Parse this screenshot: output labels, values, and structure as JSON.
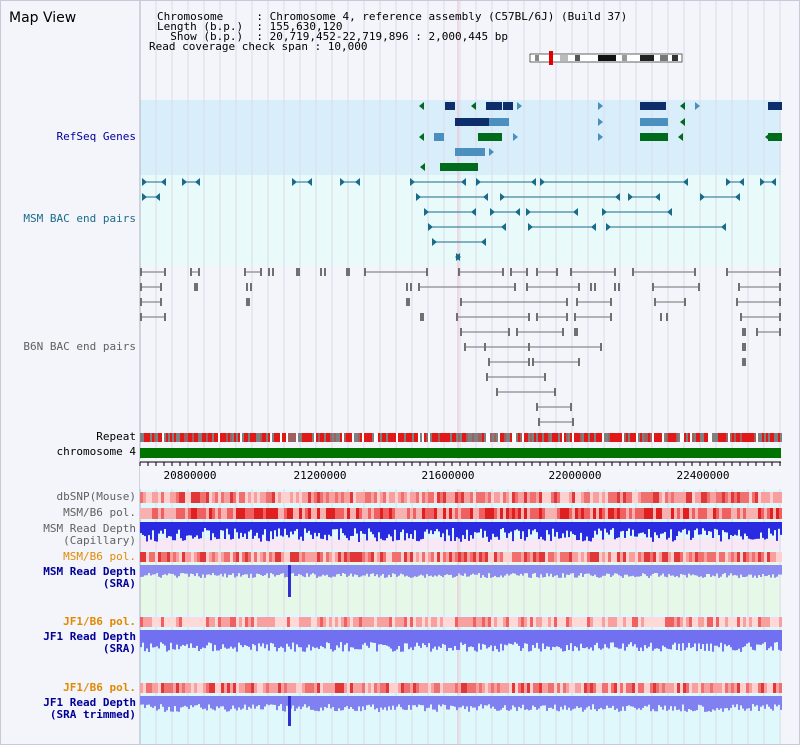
{
  "page": {
    "title": "Map View"
  },
  "header": {
    "lines": [
      {
        "key": "Chromosome     ",
        "value": "Chromosome 4, reference assembly (C57BL/6J) (Build 37)"
      },
      {
        "key": "Length (b.p.)  ",
        "value": "155,630,120"
      },
      {
        "key": "  Show (b.p.)  ",
        "value": "20,719,452-22,719,896 : 2,000,445 bp"
      }
    ],
    "coverage_line": "Read coverage check span : 10,000"
  },
  "tracks": {
    "refseq": "RefSeq Genes",
    "msm_bac": "MSM BAC end pairs",
    "b6n_bac": "B6N BAC end pairs",
    "repeat": "Repeat",
    "chromosome": "chromosome 4",
    "dbsnp": "dbSNP(Mouse)",
    "msm_b6_pol_1": "MSM/B6 pol.",
    "msm_read_depth_cap_1": "MSM Read Depth",
    "msm_read_depth_cap_2": "(Capillary)",
    "msm_b6_pol_2": "MSM/B6 pol.",
    "msm_read_depth_sra_1": "MSM Read Depth",
    "msm_read_depth_sra_2": "(SRA)",
    "jf1_b6_pol_1": "JF1/B6 pol.",
    "jf1_read_depth_sra_1": "JF1 Read Depth",
    "jf1_read_depth_sra_2": "(SRA)",
    "jf1_b6_pol_2": "JF1/B6 pol.",
    "jf1_read_depth_trim_1": "JF1 Read Depth",
    "jf1_read_depth_trim_2": "(SRA trimmed)"
  },
  "axis": {
    "ticks": [
      "20800000",
      "21200000",
      "21600000",
      "22000000",
      "22400000"
    ]
  },
  "colors": {
    "refseq_bg": "#d8eefa",
    "bac_bg": "#e8fafa",
    "gene_dark": "#0d2d6b",
    "gene_mid": "#4a8fbd",
    "gene_green": "#006b1a",
    "msm_feature": "#1a6b8a",
    "b6n_feature": "#707070",
    "chromosome_bar": "#007300",
    "depth_blue": "#2a2ae0",
    "depth_light": "#8c8cf0",
    "snp_red": "#e83030",
    "label_blue": "#000099",
    "label_orange": "#e08a00"
  }
}
